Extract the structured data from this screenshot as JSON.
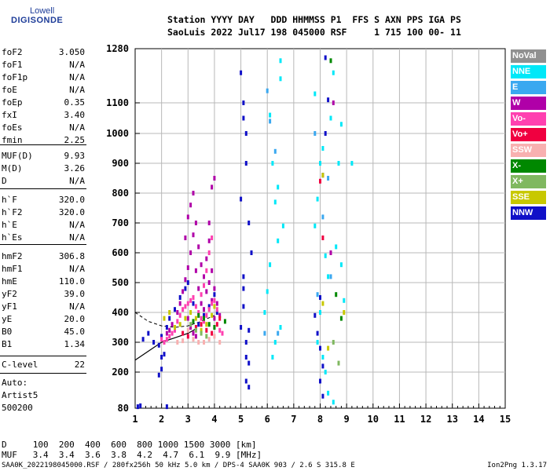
{
  "logo": {
    "line1": "Lowell",
    "line2": "DIGISONDE",
    "color": "#1e3d99"
  },
  "header": {
    "line1": "Station YYYY DAY   DDD HHMMSS P1  FFS S AXN PPS IGA PS",
    "line2": "SaoLuis 2022 Jul17 198 045000 RSF     1 715 100 00- 11"
  },
  "params": [
    {
      "name": "foF2",
      "value": "3.050"
    },
    {
      "name": "foF1",
      "value": "N/A"
    },
    {
      "name": "foF1p",
      "value": "N/A"
    },
    {
      "name": "foE",
      "value": "N/A"
    },
    {
      "name": "foEp",
      "value": "0.35"
    },
    {
      "name": "fxI",
      "value": "3.40"
    },
    {
      "name": "foEs",
      "value": "N/A"
    },
    {
      "name": "fmin",
      "value": "2.25"
    },
    {
      "name": "MUF(D)",
      "value": "9.93"
    },
    {
      "name": "M(D)",
      "value": "3.26"
    },
    {
      "name": "D",
      "value": "N/A"
    },
    {
      "name": "h`F",
      "value": "320.0"
    },
    {
      "name": "h`F2",
      "value": "320.0"
    },
    {
      "name": "h`E",
      "value": "N/A"
    },
    {
      "name": "h`Es",
      "value": "N/A"
    },
    {
      "name": "hmF2",
      "value": "306.8"
    },
    {
      "name": "hmF1",
      "value": "N/A"
    },
    {
      "name": "hmE",
      "value": "110.0"
    },
    {
      "name": "yF2",
      "value": "39.0"
    },
    {
      "name": "yF1",
      "value": "N/A"
    },
    {
      "name": "yE",
      "value": "20.0"
    },
    {
      "name": "B0",
      "value": "45.0"
    },
    {
      "name": "B1",
      "value": "1.34"
    },
    {
      "name": "C-level",
      "value": "22"
    }
  ],
  "auto_block": {
    "line1": "Auto:",
    "line2": "Artist5",
    "line3": "500200"
  },
  "legend": [
    {
      "label": "NoVal",
      "color": "#909090"
    },
    {
      "label": "NNE",
      "color": "#00e8f8"
    },
    {
      "label": "E",
      "color": "#3aa8f0"
    },
    {
      "label": "W",
      "color": "#b000a8"
    },
    {
      "label": "Vo-",
      "color": "#ff40b0"
    },
    {
      "label": "Vo+",
      "color": "#f00040"
    },
    {
      "label": "SSW",
      "color": "#f8b0b0"
    },
    {
      "label": "X-",
      "color": "#008800"
    },
    {
      "label": "X+",
      "color": "#80b860"
    },
    {
      "label": "SSE",
      "color": "#c8c800"
    },
    {
      "label": "NNW",
      "color": "#1010c8"
    }
  ],
  "chart_data": {
    "type": "scatter",
    "title": "",
    "xlabel": "",
    "ylabel": "",
    "xlim": [
      1,
      15
    ],
    "ylim": [
      80,
      1280
    ],
    "x_ticks": [
      1,
      2,
      3,
      4,
      5,
      6,
      7,
      8,
      9,
      10,
      11,
      12,
      13,
      14,
      15
    ],
    "y_ticks": [
      80,
      200,
      300,
      400,
      500,
      600,
      700,
      800,
      900,
      1000,
      1100,
      1280
    ],
    "y_scale": "nonlinear (ionogram virtual height)",
    "grid": true,
    "legend_placement": "right",
    "series": [
      {
        "name": "NNW",
        "color": "#1010c8",
        "points": [
          [
            1.3,
            310
          ],
          [
            1.5,
            330
          ],
          [
            1.7,
            300
          ],
          [
            1.9,
            290
          ],
          [
            2.0,
            320
          ],
          [
            2.2,
            350
          ],
          [
            2.3,
            380
          ],
          [
            2.5,
            410
          ],
          [
            2.7,
            450
          ],
          [
            2.9,
            480
          ],
          [
            3.0,
            500
          ],
          [
            3.2,
            430
          ],
          [
            3.4,
            360
          ],
          [
            3.6,
            390
          ],
          [
            3.8,
            420
          ],
          [
            4.0,
            460
          ],
          [
            4.1,
            400
          ],
          [
            2.1,
            260
          ],
          [
            2.0,
            210
          ],
          [
            1.9,
            190
          ],
          [
            2.0,
            250
          ],
          [
            5.1,
            1050
          ],
          [
            5.2,
            900
          ],
          [
            5.3,
            700
          ],
          [
            5.4,
            600
          ],
          [
            5.1,
            420
          ],
          [
            5.2,
            300
          ],
          [
            5.3,
            230
          ],
          [
            5.2,
            170
          ],
          [
            5.3,
            150
          ],
          [
            5.0,
            1200
          ],
          [
            5.1,
            1100
          ],
          [
            5.2,
            1000
          ],
          [
            5.0,
            780
          ],
          [
            5.1,
            520
          ],
          [
            5.0,
            350
          ],
          [
            5.1,
            480
          ],
          [
            7.9,
            330
          ],
          [
            8.0,
            280
          ],
          [
            8.1,
            220
          ],
          [
            8.0,
            450
          ],
          [
            7.8,
            390
          ],
          [
            8.0,
            170
          ],
          [
            8.1,
            120
          ],
          [
            8.3,
            1110
          ],
          [
            8.1,
            860
          ],
          [
            8.2,
            1250
          ],
          [
            8.2,
            1000
          ],
          [
            5.3,
            340
          ],
          [
            5.2,
            250
          ],
          [
            1.1,
            85
          ],
          [
            1.2,
            88
          ],
          [
            2.2,
            85
          ]
        ]
      },
      {
        "name": "W",
        "color": "#b000a8",
        "points": [
          [
            2.9,
            650
          ],
          [
            3.0,
            720
          ],
          [
            3.1,
            760
          ],
          [
            3.2,
            800
          ],
          [
            3.3,
            700
          ],
          [
            3.4,
            620
          ],
          [
            3.5,
            560
          ],
          [
            3.6,
            520
          ],
          [
            3.7,
            580
          ],
          [
            3.8,
            640
          ],
          [
            3.9,
            540
          ],
          [
            4.0,
            480
          ],
          [
            4.1,
            430
          ],
          [
            4.2,
            390
          ],
          [
            3.0,
            550
          ],
          [
            3.1,
            600
          ],
          [
            3.2,
            660
          ],
          [
            3.3,
            540
          ],
          [
            3.4,
            480
          ],
          [
            3.5,
            430
          ],
          [
            3.6,
            410
          ],
          [
            3.7,
            470
          ],
          [
            3.8,
            500
          ],
          [
            3.9,
            440
          ],
          [
            4.0,
            380
          ],
          [
            2.6,
            400
          ],
          [
            2.7,
            430
          ],
          [
            2.8,
            470
          ],
          [
            2.9,
            510
          ],
          [
            3.0,
            380
          ],
          [
            3.1,
            350
          ],
          [
            3.2,
            330
          ],
          [
            3.3,
            320
          ],
          [
            2.4,
            360
          ],
          [
            2.3,
            340
          ],
          [
            2.2,
            330
          ],
          [
            8.5,
            1100
          ],
          [
            8.4,
            600
          ],
          [
            4.0,
            850
          ],
          [
            3.9,
            820
          ],
          [
            3.8,
            700
          ]
        ]
      },
      {
        "name": "Vo-",
        "color": "#ff40b0",
        "points": [
          [
            2.6,
            370
          ],
          [
            2.7,
            390
          ],
          [
            2.8,
            410
          ],
          [
            2.9,
            420
          ],
          [
            3.0,
            430
          ],
          [
            3.1,
            440
          ],
          [
            3.2,
            450
          ],
          [
            3.3,
            420
          ],
          [
            3.4,
            400
          ],
          [
            3.5,
            380
          ],
          [
            3.6,
            370
          ],
          [
            3.7,
            390
          ],
          [
            3.8,
            410
          ],
          [
            3.9,
            430
          ],
          [
            4.0,
            440
          ],
          [
            4.1,
            410
          ],
          [
            2.5,
            340
          ],
          [
            2.4,
            330
          ],
          [
            2.3,
            320
          ],
          [
            2.2,
            310
          ],
          [
            2.1,
            300
          ],
          [
            2.0,
            310
          ],
          [
            3.9,
            650
          ],
          [
            3.8,
            600
          ],
          [
            3.7,
            540
          ],
          [
            3.6,
            490
          ],
          [
            3.5,
            460
          ],
          [
            4.2,
            340
          ],
          [
            4.3,
            330
          ]
        ]
      },
      {
        "name": "Vo+",
        "color": "#f00040",
        "points": [
          [
            3.3,
            350
          ],
          [
            3.5,
            360
          ],
          [
            3.7,
            340
          ],
          [
            3.9,
            330
          ],
          [
            4.1,
            360
          ],
          [
            4.2,
            380
          ],
          [
            2.8,
            330
          ],
          [
            3.0,
            320
          ],
          [
            8.0,
            840
          ],
          [
            8.1,
            650
          ]
        ]
      },
      {
        "name": "NNE",
        "color": "#00e8f8",
        "points": [
          [
            6.0,
            470
          ],
          [
            6.2,
            900
          ],
          [
            6.5,
            1180
          ],
          [
            6.1,
            1060
          ],
          [
            6.4,
            820
          ],
          [
            6.3,
            770
          ],
          [
            6.6,
            690
          ],
          [
            6.4,
            640
          ],
          [
            7.8,
            690
          ],
          [
            7.9,
            780
          ],
          [
            8.0,
            900
          ],
          [
            8.1,
            950
          ],
          [
            8.2,
            590
          ],
          [
            8.3,
            520
          ],
          [
            8.0,
            400
          ],
          [
            7.9,
            300
          ],
          [
            8.1,
            250
          ],
          [
            8.2,
            200
          ],
          [
            8.3,
            130
          ],
          [
            8.5,
            100
          ],
          [
            8.6,
            620
          ],
          [
            8.7,
            900
          ],
          [
            8.8,
            1030
          ],
          [
            9.2,
            900
          ],
          [
            8.5,
            1200
          ],
          [
            8.8,
            560
          ],
          [
            8.9,
            440
          ],
          [
            6.2,
            250
          ],
          [
            6.3,
            300
          ],
          [
            6.5,
            350
          ],
          [
            5.9,
            400
          ],
          [
            6.1,
            560
          ],
          [
            6.5,
            1240
          ],
          [
            7.8,
            1130
          ],
          [
            8.4,
            1050
          ]
        ]
      },
      {
        "name": "E",
        "color": "#3aa8f0",
        "points": [
          [
            6.0,
            1140
          ],
          [
            6.1,
            1040
          ],
          [
            6.3,
            940
          ],
          [
            7.8,
            1000
          ],
          [
            8.4,
            520
          ],
          [
            8.1,
            720
          ],
          [
            8.3,
            850
          ],
          [
            6.4,
            330
          ],
          [
            5.9,
            330
          ],
          [
            7.9,
            460
          ]
        ]
      },
      {
        "name": "SSE",
        "color": "#c8c800",
        "points": [
          [
            2.9,
            380
          ],
          [
            3.1,
            400
          ],
          [
            3.3,
            380
          ],
          [
            3.5,
            340
          ],
          [
            3.7,
            360
          ],
          [
            3.9,
            390
          ],
          [
            4.0,
            420
          ],
          [
            2.7,
            360
          ],
          [
            2.5,
            350
          ],
          [
            8.9,
            400
          ],
          [
            8.1,
            860
          ],
          [
            8.3,
            280
          ],
          [
            8.1,
            430
          ],
          [
            2.1,
            380
          ],
          [
            2.3,
            400
          ]
        ]
      },
      {
        "name": "X-",
        "color": "#008800",
        "points": [
          [
            3.2,
            370
          ],
          [
            3.4,
            390
          ],
          [
            3.6,
            380
          ],
          [
            3.8,
            360
          ],
          [
            4.0,
            350
          ],
          [
            4.4,
            370
          ],
          [
            8.4,
            1240
          ],
          [
            8.6,
            460
          ],
          [
            8.8,
            380
          ]
        ]
      },
      {
        "name": "X+",
        "color": "#80b860",
        "points": [
          [
            3.1,
            360
          ],
          [
            3.3,
            340
          ],
          [
            3.5,
            330
          ],
          [
            3.7,
            320
          ],
          [
            8.5,
            300
          ],
          [
            8.7,
            230
          ]
        ]
      },
      {
        "name": "SSW",
        "color": "#f8b0b0",
        "points": [
          [
            3.0,
            340
          ],
          [
            3.2,
            310
          ],
          [
            3.4,
            300
          ],
          [
            3.6,
            300
          ],
          [
            3.8,
            310
          ],
          [
            4.0,
            320
          ],
          [
            4.2,
            300
          ],
          [
            2.6,
            300
          ],
          [
            2.8,
            305
          ]
        ]
      }
    ],
    "trace_color": "#000000",
    "trace_points": [
      [
        1.0,
        240
      ],
      [
        1.5,
        270
      ],
      [
        2.0,
        300
      ],
      [
        2.5,
        315
      ],
      [
        3.0,
        330
      ],
      [
        3.3,
        345
      ]
    ],
    "dashed_curve": [
      [
        1.0,
        400
      ],
      [
        1.5,
        370
      ],
      [
        2.0,
        355
      ],
      [
        2.5,
        350
      ],
      [
        3.0,
        355
      ],
      [
        3.5,
        370
      ],
      [
        4.0,
        390
      ]
    ]
  },
  "distance_table": {
    "row1": "D     100  200  400  600  800 1000 1500 3000 [km]",
    "row2": "MUF   3.4  3.4  3.6  3.8  4.2  4.7  6.1  9.9 [MHz]"
  },
  "footer": {
    "left": "SAA0K_2022198045000.RSF / 280fx256h 50 kHz 5.0 km / DPS-4 SAA0K 903 / 2.6 S 315.8 E",
    "right": "Ion2Png 1.3.17"
  }
}
